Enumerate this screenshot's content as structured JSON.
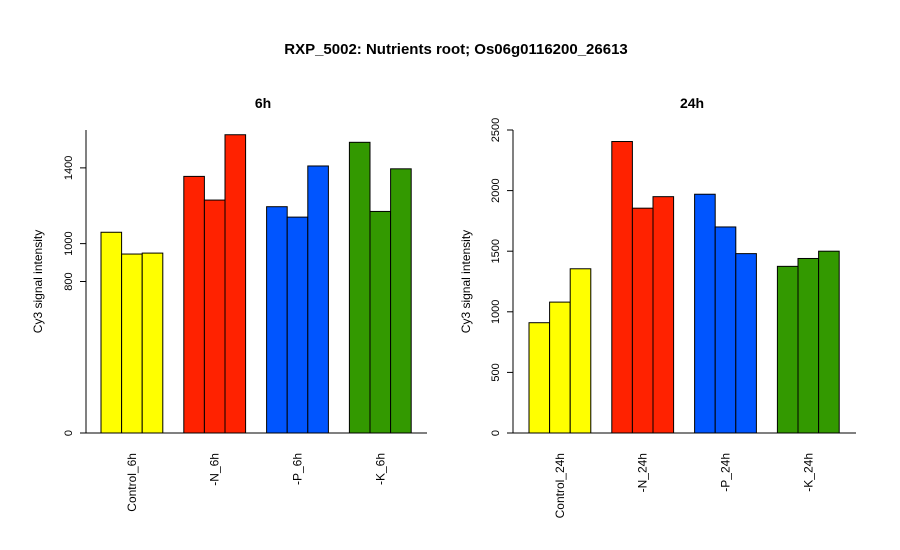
{
  "title": "RXP_5002: Nutrients root; Os06g0116200_26613",
  "colors": {
    "control": "#ffff00",
    "n": "#ff2200",
    "p": "#0055ff",
    "k": "#339900"
  },
  "chart_data": [
    {
      "type": "bar",
      "title": "6h",
      "ylabel": "Cy3 signal intensity",
      "ylim": [
        0,
        1600
      ],
      "yticks": [
        0,
        800,
        1000,
        1400
      ],
      "groups": [
        "Control_6h",
        "-N_6h",
        "-P_6h",
        "-K_6h"
      ],
      "group_colors": [
        "#ffff00",
        "#ff2200",
        "#0055ff",
        "#339900"
      ],
      "values": [
        [
          1060,
          945,
          950
        ],
        [
          1355,
          1230,
          1575
        ],
        [
          1195,
          1140,
          1410
        ],
        [
          1535,
          1170,
          1395
        ]
      ],
      "grid": false
    },
    {
      "type": "bar",
      "title": "24h",
      "ylabel": "Cy3 signal intensity",
      "ylim": [
        0,
        2500
      ],
      "yticks": [
        0,
        500,
        1000,
        1500,
        2000,
        2500
      ],
      "groups": [
        "Control_24h",
        "-N_24h",
        "-P_24h",
        "-K_24h"
      ],
      "group_colors": [
        "#ffff00",
        "#ff2200",
        "#0055ff",
        "#339900"
      ],
      "values": [
        [
          910,
          1080,
          1355
        ],
        [
          2405,
          1855,
          1950
        ],
        [
          1970,
          1700,
          1480
        ],
        [
          1375,
          1440,
          1500
        ]
      ],
      "grid": false
    }
  ]
}
